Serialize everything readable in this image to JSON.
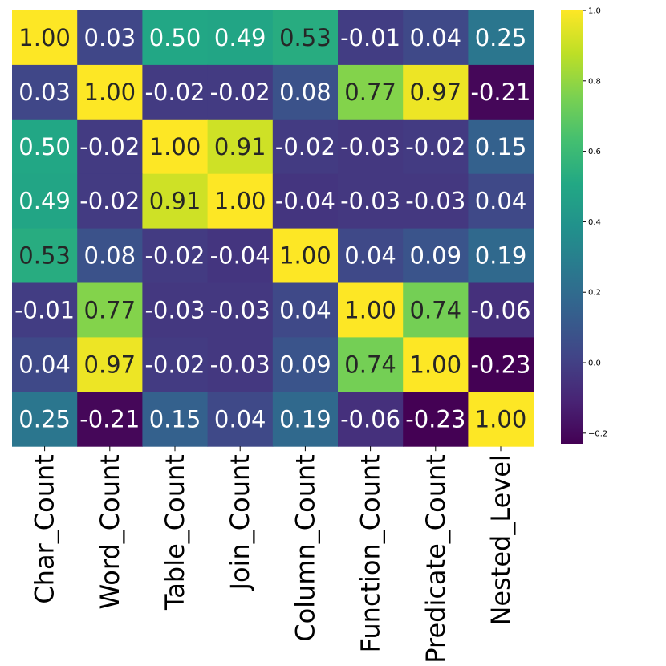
{
  "chart_data": {
    "type": "heatmap",
    "title": "",
    "xlabel": "",
    "ylabel": "",
    "categories": [
      "Char_Count",
      "Word_Count",
      "Table_Count",
      "Join_Count",
      "Column_Count",
      "Function_Count",
      "Predicate_Count",
      "Nested_Level"
    ],
    "matrix": [
      [
        1.0,
        0.03,
        0.5,
        0.49,
        0.53,
        -0.01,
        0.04,
        0.25
      ],
      [
        0.03,
        1.0,
        -0.02,
        -0.02,
        0.08,
        0.77,
        0.97,
        -0.21
      ],
      [
        0.5,
        -0.02,
        1.0,
        0.91,
        -0.02,
        -0.03,
        -0.02,
        0.15
      ],
      [
        0.49,
        -0.02,
        0.91,
        1.0,
        -0.04,
        -0.03,
        -0.03,
        0.04
      ],
      [
        0.53,
        0.08,
        -0.02,
        -0.04,
        1.0,
        0.04,
        0.09,
        0.19
      ],
      [
        -0.01,
        0.77,
        -0.03,
        -0.03,
        0.04,
        1.0,
        0.74,
        -0.06
      ],
      [
        0.04,
        0.97,
        -0.02,
        -0.03,
        0.09,
        0.74,
        1.0,
        -0.23
      ],
      [
        0.25,
        -0.21,
        0.15,
        0.04,
        0.19,
        -0.06,
        -0.23,
        1.0
      ]
    ],
    "cell_labels": [
      [
        "1.00",
        "0.03",
        "0.50",
        "0.49",
        "0.53",
        "-0.01",
        "0.04",
        "0.25"
      ],
      [
        "0.03",
        "1.00",
        "-0.02",
        "-0.02",
        "0.08",
        "0.77",
        "0.97",
        "-0.21"
      ],
      [
        "0.50",
        "-0.02",
        "1.00",
        "0.91",
        "-0.02",
        "-0.03",
        "-0.02",
        "0.15"
      ],
      [
        "0.49",
        "-0.02",
        "0.91",
        "1.00",
        "-0.04",
        "-0.03",
        "-0.03",
        "0.04"
      ],
      [
        "0.53",
        "0.08",
        "-0.02",
        "-0.04",
        "1.00",
        "0.04",
        "0.09",
        "0.19"
      ],
      [
        "-0.01",
        "0.77",
        "-0.03",
        "-0.03",
        "0.04",
        "1.00",
        "0.74",
        "-0.06"
      ],
      [
        "0.04",
        "0.97",
        "-0.02",
        "-0.03",
        "0.09",
        "0.74",
        "1.00",
        "-0.23"
      ],
      [
        "0.25",
        "-0.21",
        "0.15",
        "0.04",
        "0.19",
        "-0.06",
        "-0.23",
        "1.00"
      ]
    ],
    "colormap": "viridis",
    "vmin": -0.23,
    "vmax": 1.0,
    "colorbar_ticks": [
      -0.2,
      0.0,
      0.2,
      0.4,
      0.6,
      0.8,
      1.0
    ],
    "colorbar_tick_labels": [
      "−0.2",
      "0.0",
      "0.2",
      "0.4",
      "0.6",
      "0.8",
      "1.0"
    ],
    "grid": false,
    "show_y_tick_labels": false
  }
}
